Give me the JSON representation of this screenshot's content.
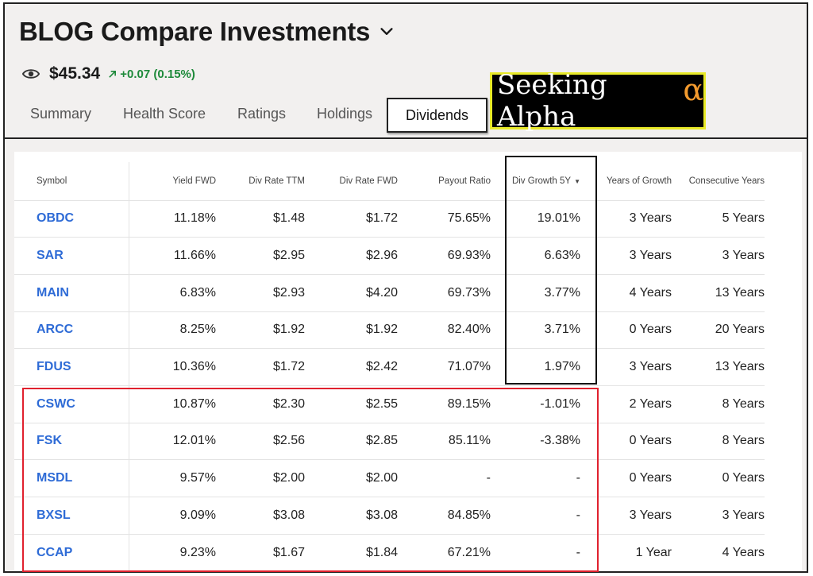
{
  "header": {
    "title": "BLOG Compare Investments",
    "price": "$45.34",
    "change": "+0.07 (0.15%)"
  },
  "tabs": [
    "Summary",
    "Health Score",
    "Ratings",
    "Holdings",
    "Dividends"
  ],
  "active_tab": "Dividends",
  "logo": {
    "text": "Seeking Alpha",
    "symbol": "α"
  },
  "colors": {
    "accent": "#2e6bd6",
    "positive": "#1f8a3b",
    "highlight_box": "#111111",
    "red_box": "#e0212e",
    "logo_border": "#e8ea28",
    "logo_alpha": "#f29a2e"
  },
  "table": {
    "columns": [
      "Symbol",
      "Yield FWD",
      "Div Rate TTM",
      "Div Rate FWD",
      "Payout Ratio",
      "Div Growth 5Y",
      "Years of Growth",
      "Consecutive Years"
    ],
    "rows": [
      [
        "OBDC",
        "11.18%",
        "$1.48",
        "$1.72",
        "75.65%",
        "19.01%",
        "3 Years",
        "5 Years"
      ],
      [
        "SAR",
        "11.66%",
        "$2.95",
        "$2.96",
        "69.93%",
        "6.63%",
        "3 Years",
        "3 Years"
      ],
      [
        "MAIN",
        "6.83%",
        "$2.93",
        "$4.20",
        "69.73%",
        "3.77%",
        "4 Years",
        "13 Years"
      ],
      [
        "ARCC",
        "8.25%",
        "$1.92",
        "$1.92",
        "82.40%",
        "3.71%",
        "0 Years",
        "20 Years"
      ],
      [
        "FDUS",
        "10.36%",
        "$1.72",
        "$2.42",
        "71.07%",
        "1.97%",
        "3 Years",
        "13 Years"
      ],
      [
        "CSWC",
        "10.87%",
        "$2.30",
        "$2.55",
        "89.15%",
        "-1.01%",
        "2 Years",
        "8 Years"
      ],
      [
        "FSK",
        "12.01%",
        "$2.56",
        "$2.85",
        "85.11%",
        "-3.38%",
        "0 Years",
        "8 Years"
      ],
      [
        "MSDL",
        "9.57%",
        "$2.00",
        "$2.00",
        "-",
        "-",
        "0 Years",
        "0 Years"
      ],
      [
        "BXSL",
        "9.09%",
        "$3.08",
        "$3.08",
        "84.85%",
        "-",
        "3 Years",
        "3 Years"
      ],
      [
        "CCAP",
        "9.23%",
        "$1.67",
        "$1.84",
        "67.21%",
        "-",
        "1 Year",
        "4 Years"
      ]
    ]
  }
}
